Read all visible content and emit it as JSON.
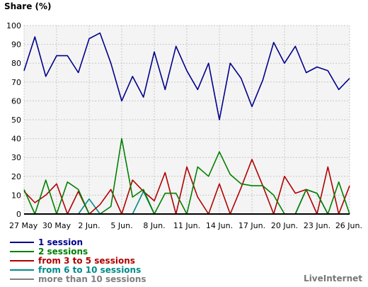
{
  "chart_data": {
    "type": "line",
    "ylabel": "Share (%)",
    "ylim": [
      0,
      100
    ],
    "yticks": [
      0,
      10,
      20,
      30,
      40,
      50,
      60,
      70,
      80,
      90,
      100
    ],
    "x_count": 31,
    "x_tick_labels": [
      {
        "index": 0,
        "label": "27 May"
      },
      {
        "index": 3,
        "label": "30 May"
      },
      {
        "index": 6,
        "label": "2 Jun."
      },
      {
        "index": 9,
        "label": "5 Jun."
      },
      {
        "index": 12,
        "label": "8 Jun."
      },
      {
        "index": 15,
        "label": "11 Jun."
      },
      {
        "index": 18,
        "label": "14 Jun."
      },
      {
        "index": 21,
        "label": "17 Jun."
      },
      {
        "index": 24,
        "label": "20 Jun."
      },
      {
        "index": 27,
        "label": "23 Jun."
      },
      {
        "index": 30,
        "label": "26 Jun."
      }
    ],
    "grid": true,
    "legend_position": "bottom-left",
    "background_color": "#f4f4f4",
    "grid_color": "#c8c8c8",
    "series": [
      {
        "name": "1 session",
        "color": "#00008b",
        "values": [
          76,
          94,
          73,
          84,
          84,
          75,
          93,
          96,
          80,
          60,
          73,
          62,
          86,
          66,
          89,
          76,
          66,
          80,
          50,
          80,
          72,
          57,
          71,
          91,
          80,
          89,
          75,
          78,
          76,
          66,
          72
        ]
      },
      {
        "name": "2 sessions",
        "color": "#008000",
        "values": [
          13,
          0,
          18,
          0,
          17,
          13,
          0,
          0,
          4,
          40,
          9,
          13,
          0,
          11,
          11,
          0,
          25,
          20,
          33,
          21,
          16,
          15,
          15,
          10,
          0,
          0,
          13,
          11,
          0,
          17,
          0
        ]
      },
      {
        "name": "from 3 to 5 sessions",
        "color": "#b00000",
        "values": [
          12,
          6,
          10,
          16,
          0,
          12,
          0,
          5,
          13,
          0,
          18,
          12,
          7,
          22,
          0,
          25,
          9,
          0,
          16,
          0,
          14,
          29,
          15,
          0,
          20,
          11,
          13,
          0,
          25,
          0,
          15
        ]
      },
      {
        "name": "from 6 to 10 sessions",
        "color": "#008b8b",
        "values": [
          0,
          0,
          0,
          0,
          0,
          0,
          8,
          0,
          0,
          0,
          0,
          12,
          0,
          0,
          0,
          0,
          0,
          0,
          0,
          0,
          0,
          0,
          0,
          0,
          0,
          0,
          13,
          11,
          0,
          0,
          0
        ]
      },
      {
        "name": "more than 10 sessions",
        "color": "#808080",
        "values": [
          0,
          0,
          0,
          0,
          0,
          0,
          0,
          0,
          0,
          0,
          0,
          0,
          0,
          0,
          0,
          0,
          0,
          0,
          0,
          0,
          0,
          0,
          0,
          0,
          0,
          0,
          0,
          0,
          0,
          0,
          0
        ]
      }
    ],
    "legend_text_colors": [
      "#00008b",
      "#008000",
      "#b00000",
      "#008b8b",
      "#808080"
    ]
  },
  "brand": "LiveInternet"
}
